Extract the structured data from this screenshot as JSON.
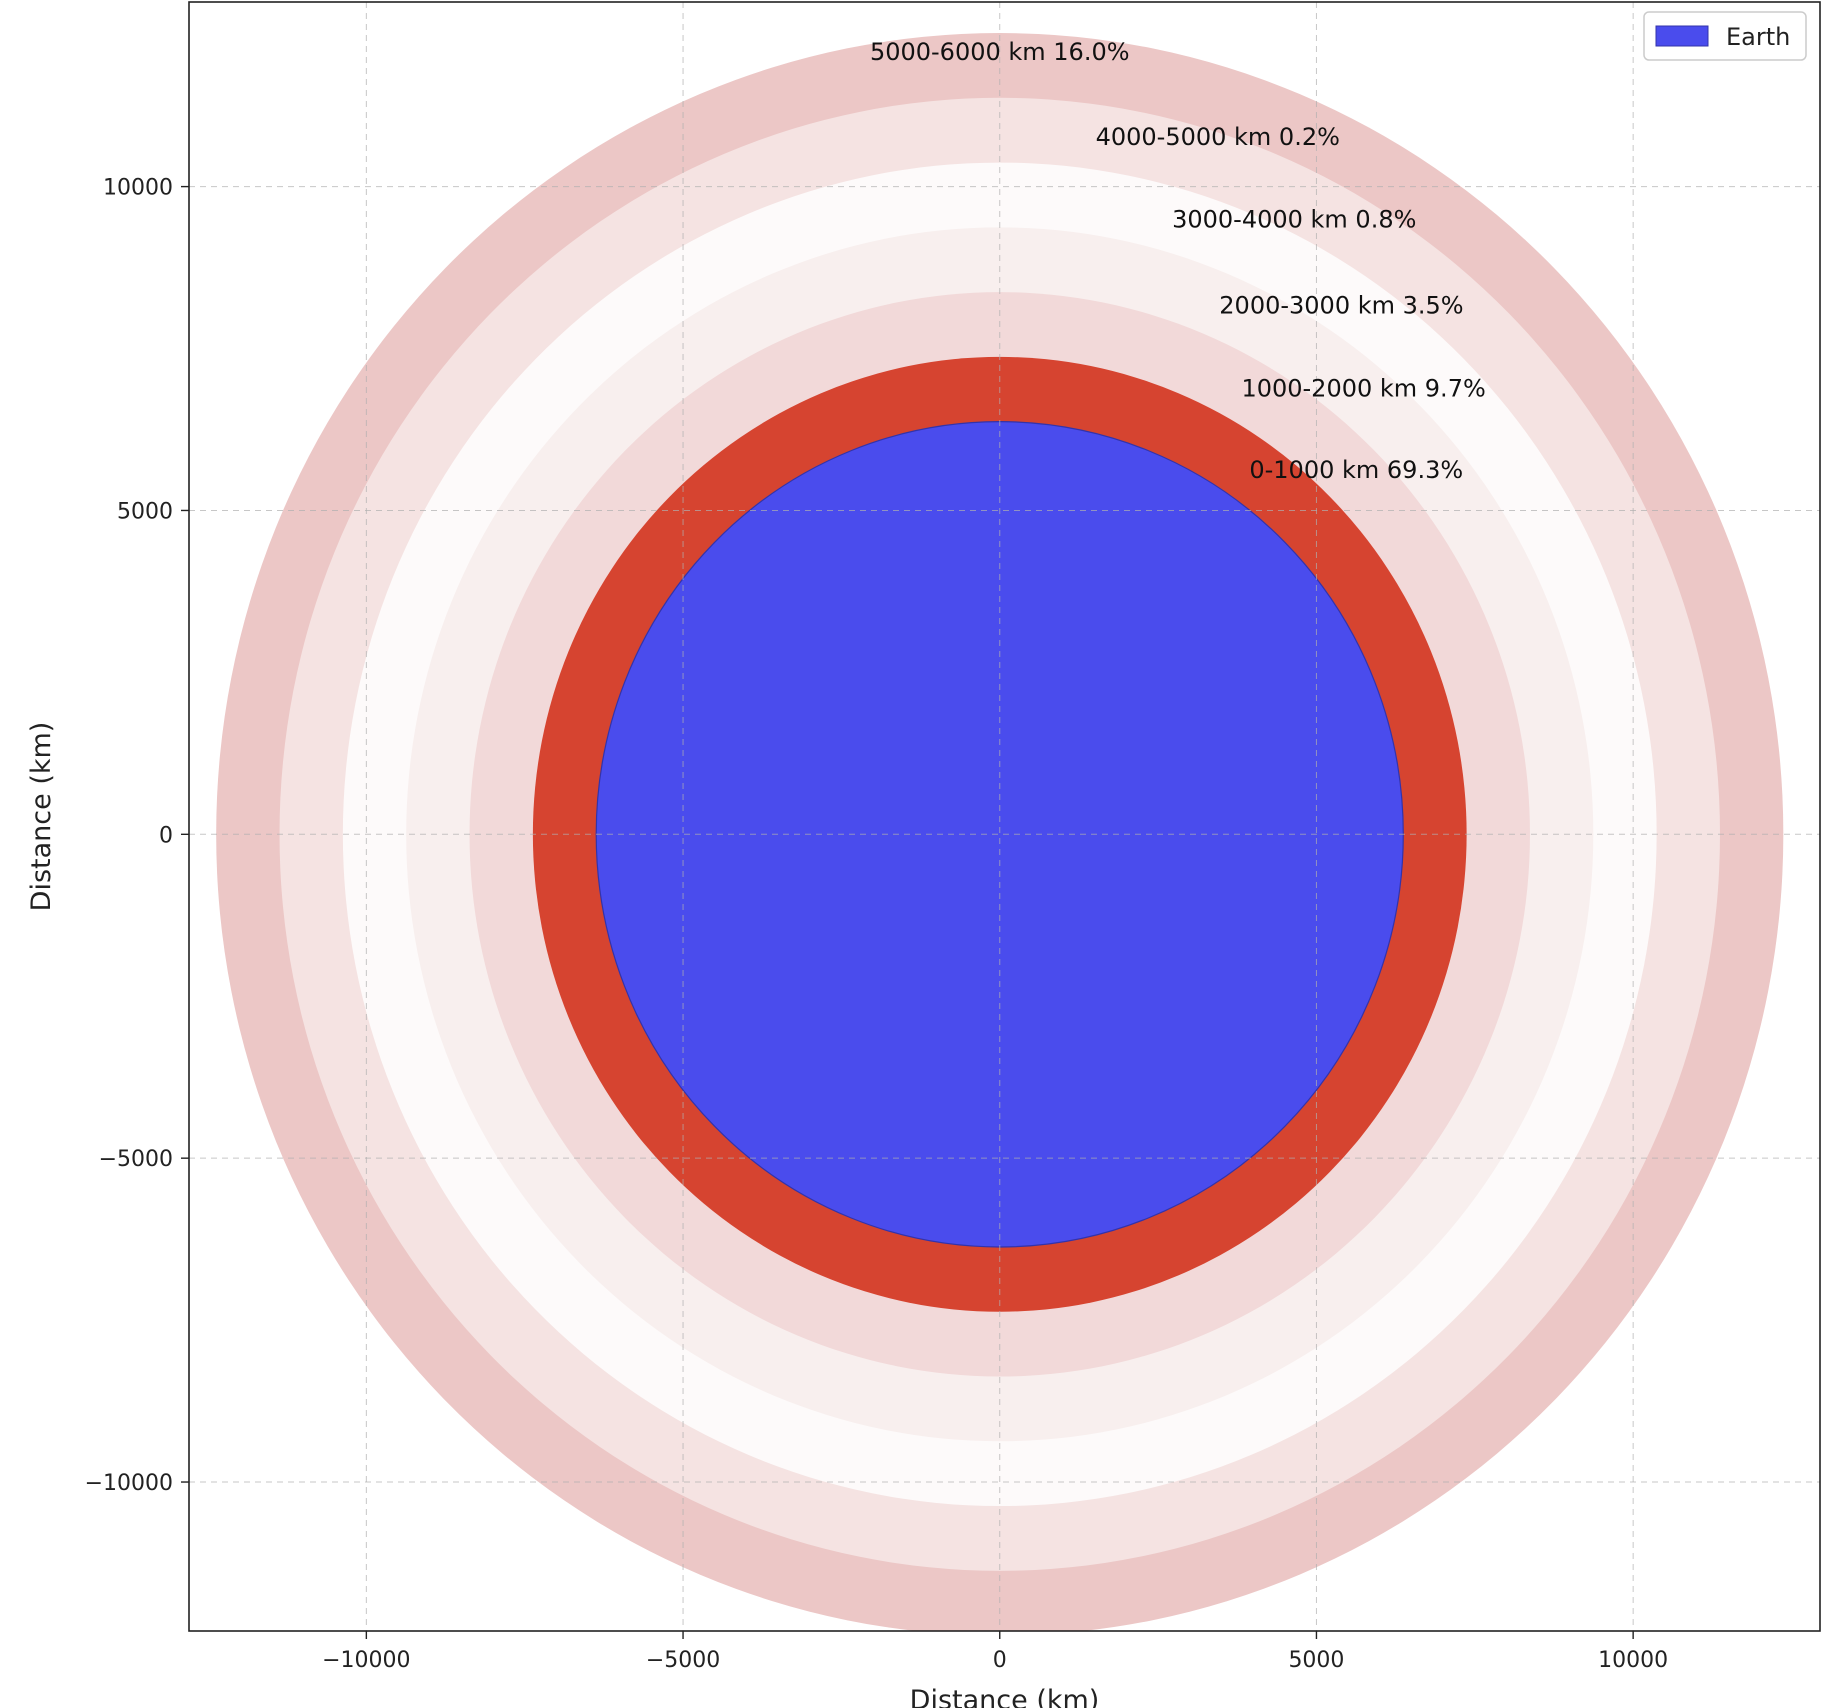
{
  "chart_data": {
    "type": "concentric-rings",
    "title": "",
    "xlabel": "Distance (km)",
    "ylabel": "Distance (km)",
    "xlim": [
      -12800,
      12950
    ],
    "ylim": [
      -12300,
      12850
    ],
    "xticks": [
      -10000,
      -5000,
      0,
      5000,
      10000
    ],
    "yticks": [
      -10000,
      -5000,
      0,
      5000,
      10000
    ],
    "xtick_labels": [
      "−10000",
      "−5000",
      "0",
      "5000",
      "10000"
    ],
    "ytick_labels": [
      "−10000",
      "−5000",
      "0",
      "5000",
      "10000"
    ],
    "grid": true,
    "legend": {
      "position": "top-right",
      "entries": [
        {
          "label": "Earth",
          "color": "#4a4ced"
        }
      ]
    },
    "earth": {
      "label": "Earth",
      "radius_km": 6371,
      "color": "#4a4ced",
      "edge_color": "#3333aa"
    },
    "rings": [
      {
        "label": "0-1000 km 69.3%",
        "inner_km": 6371,
        "outer_km": 7371,
        "percent": 69.3,
        "color": "#d64430"
      },
      {
        "label": "1000-2000 km 9.7%",
        "inner_km": 7371,
        "outer_km": 8371,
        "percent": 9.7,
        "color": "#f2d9d9"
      },
      {
        "label": "2000-3000 km 3.5%",
        "inner_km": 8371,
        "outer_km": 9371,
        "percent": 3.5,
        "color": "#f8efee"
      },
      {
        "label": "3000-4000 km 0.8%",
        "inner_km": 9371,
        "outer_km": 10371,
        "percent": 0.8,
        "color": "#fdfafa"
      },
      {
        "label": "4000-5000 km 0.2%",
        "inner_km": 10371,
        "outer_km": 11371,
        "percent": 0.2,
        "color": "#f5e3e2"
      },
      {
        "label": "5000-6000 km 16.0%",
        "inner_km": 11371,
        "outer_km": 12371,
        "percent": 16.0,
        "color": "#ecc7c6"
      }
    ]
  }
}
